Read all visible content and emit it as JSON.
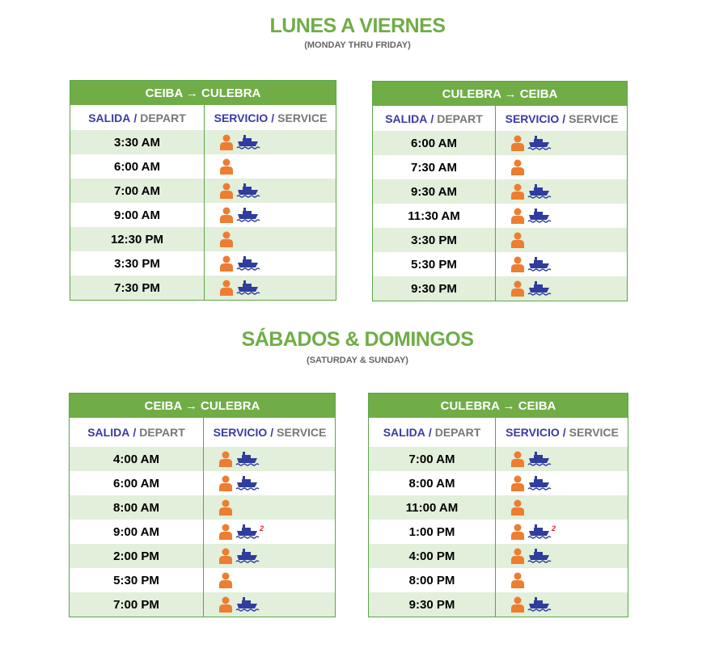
{
  "sections": [
    {
      "title": "LUNES A VIERNES",
      "subtitle": "(MONDAY THRU FRIDAY)",
      "tables": [
        {
          "route": "CEIBA → CULEBRA",
          "columns": [
            {
              "es": "SALIDA",
              "sep": "/",
              "en": "DEPART"
            },
            {
              "es": "SERVICIO",
              "sep": "/",
              "en": "SERVICE"
            }
          ],
          "rows": [
            {
              "time": "3:30 AM",
              "ferry": true
            },
            {
              "time": "6:00 AM",
              "ferry": false
            },
            {
              "time": "7:00 AM",
              "ferry": true
            },
            {
              "time": "9:00 AM",
              "ferry": true
            },
            {
              "time": "12:30 PM",
              "ferry": false
            },
            {
              "time": "3:30 PM",
              "ferry": true
            },
            {
              "time": "7:30 PM",
              "ferry": true
            }
          ]
        },
        {
          "route": "CULEBRA → CEIBA",
          "columns": [
            {
              "es": "SALIDA",
              "sep": "/",
              "en": "DEPART"
            },
            {
              "es": "SERVICIO",
              "sep": "/",
              "en": "SERVICE"
            }
          ],
          "rows": [
            {
              "time": "6:00 AM",
              "ferry": true
            },
            {
              "time": "7:30 AM",
              "ferry": false
            },
            {
              "time": "9:30 AM",
              "ferry": true
            },
            {
              "time": "11:30 AM",
              "ferry": true
            },
            {
              "time": "3:30 PM",
              "ferry": false
            },
            {
              "time": "5:30 PM",
              "ferry": true
            },
            {
              "time": "9:30 PM",
              "ferry": true
            }
          ]
        }
      ]
    },
    {
      "title": "SÁBADOS & DOMINGOS",
      "subtitle": "(SATURDAY & SUNDAY)",
      "tables": [
        {
          "route": "CEIBA → CULEBRA",
          "columns": [
            {
              "es": "SALIDA",
              "sep": "/",
              "en": "DEPART"
            },
            {
              "es": "SERVICIO",
              "sep": "/",
              "en": "SERVICE"
            }
          ],
          "rows": [
            {
              "time": "4:00 AM",
              "ferry": true
            },
            {
              "time": "6:00 AM",
              "ferry": true
            },
            {
              "time": "8:00 AM",
              "ferry": false
            },
            {
              "time": "9:00 AM",
              "ferry": true,
              "note": "2"
            },
            {
              "time": "2:00 PM",
              "ferry": true
            },
            {
              "time": "5:30 PM",
              "ferry": false
            },
            {
              "time": "7:00 PM",
              "ferry": true
            }
          ]
        },
        {
          "route": "CULEBRA → CEIBA",
          "columns": [
            {
              "es": "SALIDA",
              "sep": "/",
              "en": "DEPART"
            },
            {
              "es": "SERVICIO",
              "sep": "/",
              "en": "SERVICE"
            }
          ],
          "rows": [
            {
              "time": "7:00 AM",
              "ferry": true
            },
            {
              "time": "8:00 AM",
              "ferry": true
            },
            {
              "time": "11:00 AM",
              "ferry": false
            },
            {
              "time": "1:00 PM",
              "ferry": true,
              "note": "2"
            },
            {
              "time": "4:00 PM",
              "ferry": true
            },
            {
              "time": "8:00 PM",
              "ferry": false
            },
            {
              "time": "9:30 PM",
              "ferry": true
            }
          ]
        }
      ]
    }
  ]
}
